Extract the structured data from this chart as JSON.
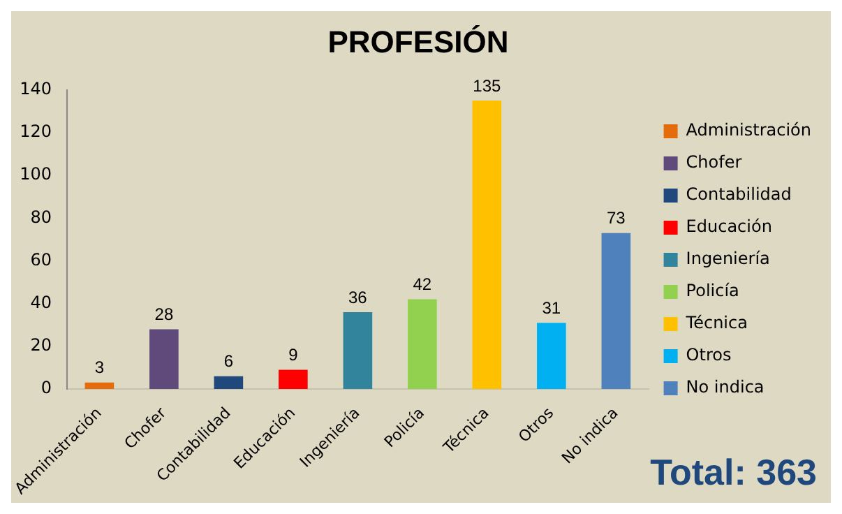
{
  "chart_data": {
    "type": "bar",
    "title": "PROFESIÓN",
    "categories": [
      "Administración",
      "Chofer",
      "Contabilidad",
      "Educación",
      "Ingeniería",
      "Policía",
      "Técnica",
      "Otros",
      "No indica"
    ],
    "series": [
      {
        "name": "Administración",
        "color": "#e46c0a",
        "values": [
          3,
          null,
          null,
          null,
          null,
          null,
          null,
          null,
          null
        ]
      },
      {
        "name": "Chofer",
        "color": "#604a7b",
        "values": [
          null,
          28,
          null,
          null,
          null,
          null,
          null,
          null,
          null
        ]
      },
      {
        "name": "Contabilidad",
        "color": "#1f497d",
        "values": [
          null,
          null,
          6,
          null,
          null,
          null,
          null,
          null,
          null
        ]
      },
      {
        "name": "Educación",
        "color": "#ff0000",
        "values": [
          null,
          null,
          null,
          9,
          null,
          null,
          null,
          null,
          null
        ]
      },
      {
        "name": "Ingeniería",
        "color": "#31849b",
        "values": [
          null,
          null,
          null,
          null,
          36,
          null,
          null,
          null,
          null
        ]
      },
      {
        "name": "Policía",
        "color": "#92d050",
        "values": [
          null,
          null,
          null,
          null,
          null,
          42,
          null,
          null,
          null
        ]
      },
      {
        "name": "Técnica",
        "color": "#ffc000",
        "values": [
          null,
          null,
          null,
          null,
          null,
          null,
          135,
          null,
          null
        ]
      },
      {
        "name": "Otros",
        "color": "#00b0f0",
        "values": [
          null,
          null,
          null,
          null,
          null,
          null,
          null,
          31,
          null
        ]
      },
      {
        "name": "No indica",
        "color": "#4f81bd",
        "values": [
          null,
          null,
          null,
          null,
          null,
          null,
          null,
          null,
          73
        ]
      }
    ],
    "ylim": [
      0,
      140
    ],
    "yticks": [
      0,
      20,
      40,
      60,
      80,
      100,
      120,
      140
    ],
    "grid": false,
    "legend": "right",
    "data_labels": true,
    "annotations": [
      "Total: 363"
    ]
  }
}
